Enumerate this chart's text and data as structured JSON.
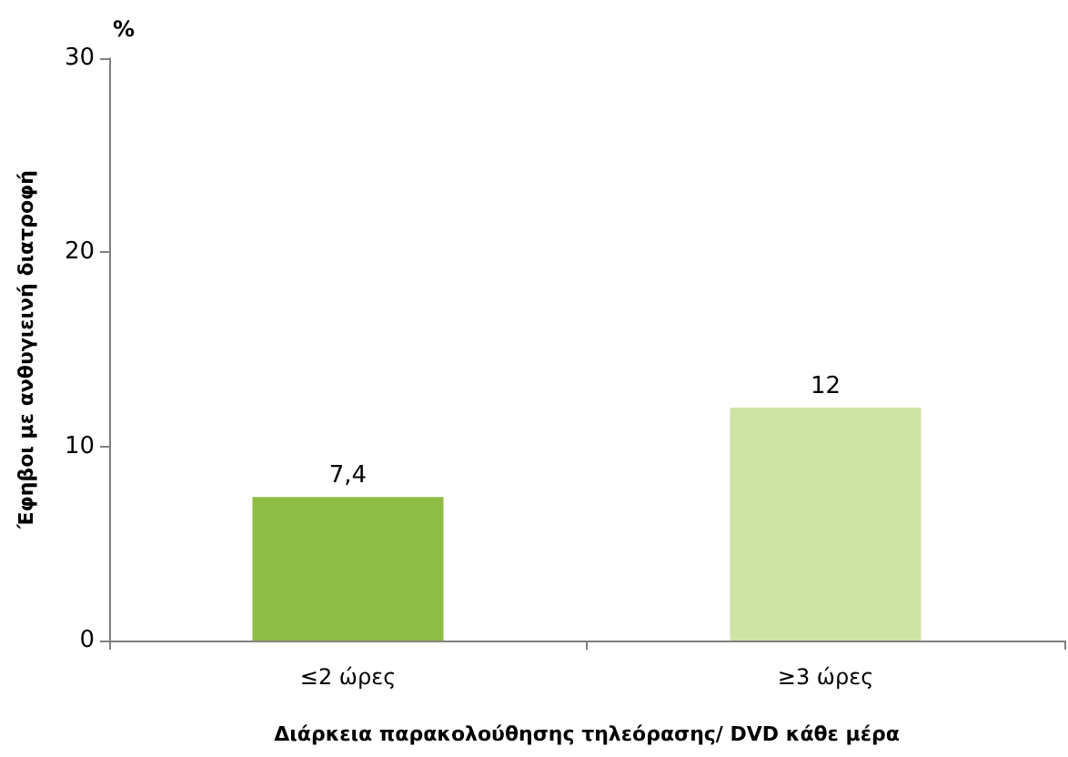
{
  "chart_data": {
    "type": "bar",
    "xlabel": "Διάρκεια παρακολούθησης τηλεόρασης/ DVD κάθε μέρα",
    "ylabel": "Έφηβοι με ανθυγιεινή διατροφή",
    "annotations": [
      "%"
    ],
    "categories": [
      "≤2 ώρες",
      "≥3 ώρες"
    ],
    "values": [
      7.4,
      12
    ],
    "colors": [
      "#8fbc45",
      "#d0e3a7"
    ],
    "value_labels": [
      "7,4",
      "12"
    ],
    "ylim": [
      0,
      30
    ],
    "yticks": [
      0,
      10,
      20,
      30
    ]
  }
}
